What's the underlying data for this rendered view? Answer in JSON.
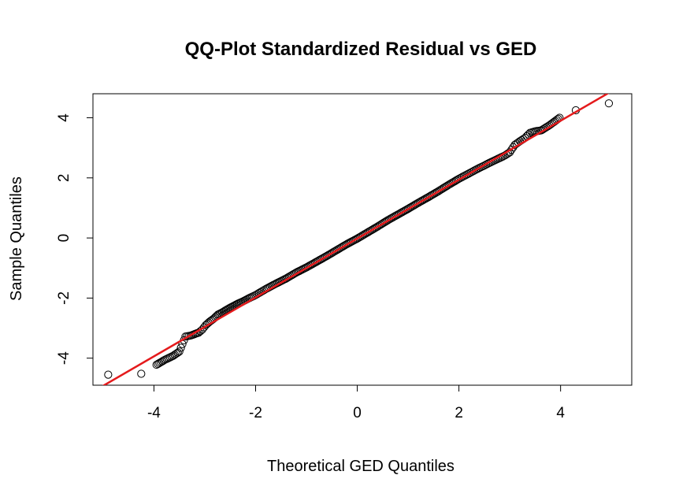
{
  "chart_data": {
    "type": "scatter",
    "title": "QQ-Plot Standardized Residual vs GED",
    "xlabel": "Theoretical GED Quantiles",
    "ylabel": "Sample Quantiles",
    "xlim": [
      -5.2,
      5.4
    ],
    "ylim": [
      -4.9,
      4.8
    ],
    "xticks": [
      -4,
      -2,
      0,
      2,
      4
    ],
    "yticks": [
      -4,
      -2,
      0,
      2,
      4
    ],
    "xtick_labels": [
      "-4",
      "-2",
      "0",
      "2",
      "4"
    ],
    "ytick_labels": [
      "-4",
      "-2",
      "0",
      "2",
      "4"
    ],
    "grid": false,
    "legend": "none",
    "marker": "open-circle",
    "line_color": "#e41a1c",
    "reference_line": {
      "slope": 0.98,
      "intercept": -0.02
    },
    "points": {
      "x": [
        -4.9,
        -4.25,
        -3.95,
        -3.78,
        -3.62,
        -3.5,
        -3.38,
        -3.28,
        -3.2,
        -3.12,
        -3.05,
        -2.98,
        -2.9,
        -2.82,
        -2.74,
        -2.66,
        -2.58,
        -2.5,
        -2.42,
        -2.34,
        -2.26,
        -2.18,
        -2.1,
        -2.0,
        -1.9,
        -1.8,
        -1.6,
        -1.4,
        -1.2,
        -1.0,
        -0.8,
        -0.6,
        -0.4,
        -0.2,
        0.0,
        0.2,
        0.4,
        0.6,
        0.8,
        1.0,
        1.2,
        1.4,
        1.6,
        1.8,
        2.0,
        2.1,
        2.2,
        2.3,
        2.4,
        2.5,
        2.6,
        2.7,
        2.8,
        2.9,
        3.0,
        3.1,
        3.2,
        3.3,
        3.4,
        3.5,
        3.62,
        3.78,
        3.98,
        4.3,
        4.95
      ],
      "y": [
        -4.55,
        -4.52,
        -4.22,
        -4.05,
        -3.92,
        -3.78,
        -3.28,
        -3.25,
        -3.2,
        -3.15,
        -3.05,
        -2.9,
        -2.78,
        -2.68,
        -2.55,
        -2.48,
        -2.4,
        -2.32,
        -2.25,
        -2.18,
        -2.12,
        -2.05,
        -1.98,
        -1.9,
        -1.8,
        -1.7,
        -1.52,
        -1.35,
        -1.15,
        -0.98,
        -0.79,
        -0.6,
        -0.4,
        -0.2,
        -0.02,
        0.18,
        0.38,
        0.59,
        0.78,
        0.97,
        1.17,
        1.36,
        1.56,
        1.77,
        1.97,
        2.06,
        2.15,
        2.24,
        2.33,
        2.41,
        2.5,
        2.58,
        2.66,
        2.74,
        2.85,
        3.1,
        3.22,
        3.33,
        3.5,
        3.55,
        3.58,
        3.75,
        4.0,
        4.25,
        4.48
      ]
    }
  }
}
